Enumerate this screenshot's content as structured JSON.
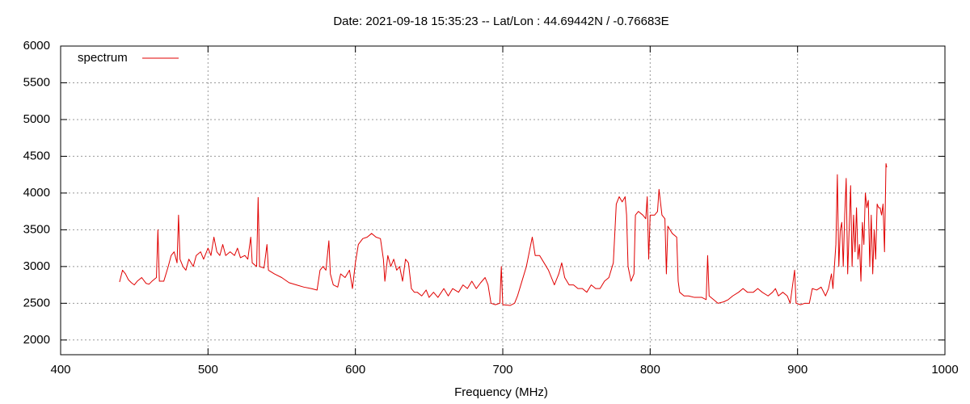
{
  "chart_data": {
    "type": "line",
    "title": "Date: 2021-09-18 15:35:23  --  Lat/Lon : 44.69442N / -0.76683E",
    "x_label": "Frequency (MHz)",
    "xlim": [
      400,
      1000
    ],
    "xticks": [
      400,
      500,
      600,
      700,
      800,
      900,
      1000
    ],
    "ylim": [
      1800,
      6000
    ],
    "yticks": [
      2000,
      2500,
      3000,
      3500,
      4000,
      4500,
      5000,
      5500,
      6000
    ],
    "grid": true,
    "legend": "top-left",
    "x": [
      440,
      442,
      444,
      446,
      448,
      450,
      452,
      455,
      458,
      460,
      462,
      465,
      466,
      467,
      470,
      473,
      475,
      477,
      479,
      480,
      481,
      483,
      485,
      487,
      490,
      492,
      495,
      497,
      500,
      502,
      504,
      506,
      508,
      510,
      512,
      515,
      518,
      520,
      522,
      525,
      527,
      529,
      530,
      533,
      534,
      535,
      538,
      540,
      541,
      545,
      550,
      555,
      560,
      565,
      570,
      574,
      576,
      578,
      580,
      582,
      583,
      585,
      588,
      590,
      593,
      596,
      598,
      600,
      602,
      605,
      608,
      611,
      614,
      617,
      619,
      620,
      622,
      624,
      626,
      628,
      630,
      632,
      634,
      636,
      638,
      640,
      642,
      645,
      648,
      650,
      653,
      656,
      660,
      663,
      666,
      670,
      673,
      676,
      679,
      682,
      685,
      688,
      690,
      692,
      695,
      698,
      699,
      700,
      705,
      708,
      710,
      713,
      716,
      718,
      720,
      722,
      725,
      728,
      731,
      733,
      735,
      738,
      740,
      742,
      745,
      748,
      751,
      754,
      757,
      760,
      763,
      766,
      769,
      772,
      775,
      777,
      779,
      781,
      783,
      784,
      785,
      787,
      789,
      790,
      792,
      795,
      797,
      798,
      799,
      800,
      803,
      805,
      806,
      808,
      810,
      811,
      812,
      815,
      818,
      819,
      820,
      823,
      826,
      830,
      835,
      838,
      839,
      840,
      843,
      846,
      850,
      853,
      856,
      860,
      863,
      866,
      870,
      873,
      876,
      880,
      883,
      885,
      887,
      890,
      893,
      895,
      898,
      899,
      902,
      905,
      908,
      910,
      913,
      916,
      919,
      921,
      923,
      924,
      925,
      926,
      927,
      928,
      929,
      930,
      931,
      932,
      933,
      934,
      935,
      936,
      937,
      938,
      939,
      940,
      941,
      942,
      943,
      944,
      945,
      946,
      947,
      948,
      949,
      950,
      951,
      952,
      953,
      954,
      955,
      956,
      957,
      958,
      959,
      960,
      960.5
    ],
    "series": [
      {
        "name": "spectrum",
        "color": "#e00000",
        "values": [
          2790,
          2950,
          2900,
          2820,
          2780,
          2750,
          2800,
          2850,
          2770,
          2760,
          2800,
          2850,
          3500,
          2800,
          2800,
          3000,
          3150,
          3200,
          3050,
          3700,
          3100,
          3000,
          2950,
          3100,
          3000,
          3150,
          3200,
          3100,
          3250,
          3150,
          3400,
          3200,
          3150,
          3300,
          3150,
          3200,
          3150,
          3250,
          3120,
          3150,
          3100,
          3400,
          3050,
          3000,
          3940,
          3000,
          2980,
          3300,
          2950,
          2900,
          2850,
          2780,
          2750,
          2720,
          2700,
          2680,
          2950,
          3000,
          2950,
          3350,
          2900,
          2750,
          2720,
          2900,
          2850,
          2950,
          2700,
          3050,
          3300,
          3380,
          3400,
          3450,
          3400,
          3380,
          3100,
          2800,
          3150,
          3000,
          3100,
          2950,
          3000,
          2800,
          3100,
          3050,
          2700,
          2650,
          2650,
          2600,
          2680,
          2580,
          2650,
          2580,
          2700,
          2600,
          2700,
          2650,
          2750,
          2700,
          2800,
          2700,
          2780,
          2850,
          2750,
          2500,
          2480,
          2500,
          3000,
          2480,
          2470,
          2500,
          2600,
          2800,
          3000,
          3200,
          3400,
          3150,
          3150,
          3050,
          2950,
          2850,
          2750,
          2900,
          3050,
          2850,
          2750,
          2750,
          2700,
          2700,
          2650,
          2750,
          2700,
          2700,
          2800,
          2850,
          3050,
          3850,
          3950,
          3880,
          3950,
          3700,
          3000,
          2800,
          2900,
          3700,
          3750,
          3700,
          3650,
          3950,
          3100,
          3700,
          3700,
          3750,
          4050,
          3700,
          3650,
          2900,
          3550,
          3450,
          3400,
          2800,
          2650,
          2600,
          2600,
          2580,
          2580,
          2550,
          3150,
          2600,
          2550,
          2500,
          2520,
          2550,
          2600,
          2650,
          2700,
          2650,
          2650,
          2700,
          2650,
          2600,
          2650,
          2700,
          2600,
          2650,
          2600,
          2500,
          2950,
          2500,
          2480,
          2500,
          2500,
          2700,
          2680,
          2720,
          2600,
          2700,
          2900,
          2700,
          3000,
          3300,
          4250,
          3000,
          3500,
          3600,
          3000,
          3700,
          4200,
          2900,
          3500,
          4100,
          3000,
          3700,
          3200,
          3800,
          3100,
          3300,
          2800,
          3600,
          3300,
          4000,
          3800,
          3900,
          3000,
          3700,
          2900,
          3500,
          3100,
          3850,
          3800,
          3800,
          3700,
          3850,
          3200,
          4400,
          4350
        ]
      }
    ]
  }
}
